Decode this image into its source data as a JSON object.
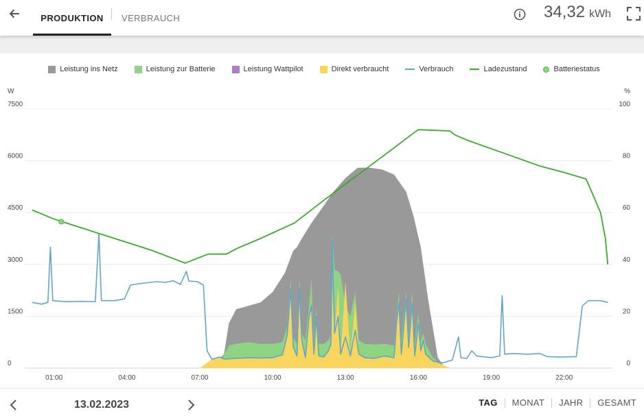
{
  "header": {
    "tabs": [
      {
        "label": "PRODUKTION",
        "active": true
      },
      {
        "label": "VERBRAUCH",
        "active": false
      }
    ],
    "total_value": "34,32",
    "total_unit": "kWh",
    "icons": [
      "arrow-left-icon",
      "info-icon",
      "fullscreen-icon"
    ]
  },
  "footer": {
    "date": "13.02.2023",
    "periods": [
      {
        "label": "TAG",
        "active": true
      },
      {
        "label": "MONAT",
        "active": false
      },
      {
        "label": "JAHR",
        "active": false
      },
      {
        "label": "GESAMT",
        "active": false
      }
    ],
    "icons": [
      "chevron-left-icon",
      "chevron-right-icon"
    ]
  },
  "colors": {
    "netz": "#999999",
    "batterie": "#8fd483",
    "wattpilot": "#b07cc6",
    "direkt": "#f9d55e",
    "verbrauch": "#5fa6c8",
    "ladezustand": "#3aaa2b",
    "batteriestatus": "#8fd483"
  },
  "chart_data": {
    "type": "area",
    "legend": [
      {
        "label": "Leistung ins Netz",
        "kind": "area",
        "color": "#999999"
      },
      {
        "label": "Leistung zur Batterie",
        "kind": "area",
        "color": "#8fd483"
      },
      {
        "label": "Leistung Wattpilot",
        "kind": "area",
        "color": "#b07cc6"
      },
      {
        "label": "Direkt verbraucht",
        "kind": "area",
        "color": "#f9d55e"
      },
      {
        "label": "Verbrauch",
        "kind": "line",
        "color": "#5fa6c8"
      },
      {
        "label": "Ladezustand",
        "kind": "line",
        "color": "#3aaa2b"
      },
      {
        "label": "Batteriestatus",
        "kind": "marker",
        "color": "#8fd483"
      }
    ],
    "legend_position": "top",
    "grid": true,
    "x_unit": "hours",
    "x_range": [
      0,
      24
    ],
    "x_ticks": [
      {
        "value": 1,
        "label": "01:00"
      },
      {
        "value": 4,
        "label": "04:00"
      },
      {
        "value": 7,
        "label": "07:00"
      },
      {
        "value": 10,
        "label": "10:00"
      },
      {
        "value": 13,
        "label": "13:00"
      },
      {
        "value": 16,
        "label": "16:00"
      },
      {
        "value": 19,
        "label": "19:00"
      },
      {
        "value": 22,
        "label": "22:00"
      }
    ],
    "y_left": {
      "unit": "W",
      "range": [
        0,
        7500
      ],
      "ticks": [
        0,
        1500,
        3000,
        4500,
        6000,
        7500
      ]
    },
    "y_right": {
      "unit": "%",
      "range": [
        0,
        100
      ],
      "ticks": [
        0,
        20,
        40,
        60,
        80,
        100
      ]
    },
    "series": [
      {
        "name": "Verbrauch",
        "kind": "line",
        "axis": "left",
        "points": [
          [
            0.1,
            1900
          ],
          [
            0.5,
            1850
          ],
          [
            0.75,
            1900
          ],
          [
            0.85,
            3500
          ],
          [
            0.95,
            1950
          ],
          [
            1.5,
            1920
          ],
          [
            2.2,
            1930
          ],
          [
            2.7,
            1920
          ],
          [
            2.85,
            3900
          ],
          [
            2.95,
            1950
          ],
          [
            3.5,
            1950
          ],
          [
            3.9,
            2000
          ],
          [
            4.15,
            2400
          ],
          [
            4.6,
            2450
          ],
          [
            5.2,
            2500
          ],
          [
            5.6,
            2480
          ],
          [
            5.9,
            2530
          ],
          [
            6.2,
            2420
          ],
          [
            6.45,
            2800
          ],
          [
            6.55,
            2520
          ],
          [
            6.9,
            2500
          ],
          [
            7.15,
            2400
          ],
          [
            7.3,
            500
          ],
          [
            7.5,
            250
          ],
          [
            7.8,
            320
          ],
          [
            8.0,
            260
          ],
          [
            8.5,
            280
          ],
          [
            9.0,
            300
          ],
          [
            9.5,
            290
          ],
          [
            10.0,
            300
          ],
          [
            10.4,
            380
          ],
          [
            10.6,
            950
          ],
          [
            10.75,
            2300
          ],
          [
            10.85,
            600
          ],
          [
            11.0,
            350
          ],
          [
            11.1,
            2300
          ],
          [
            11.2,
            800
          ],
          [
            11.35,
            300
          ],
          [
            11.5,
            1500
          ],
          [
            11.6,
            1800
          ],
          [
            11.7,
            400
          ],
          [
            11.8,
            1500
          ],
          [
            11.9,
            350
          ],
          [
            12.1,
            320
          ],
          [
            12.3,
            500
          ],
          [
            12.4,
            700
          ],
          [
            12.45,
            3700
          ],
          [
            12.55,
            1000
          ],
          [
            12.7,
            1500
          ],
          [
            12.8,
            400
          ],
          [
            13.0,
            900
          ],
          [
            13.2,
            350
          ],
          [
            13.4,
            1100
          ],
          [
            13.55,
            400
          ],
          [
            13.8,
            300
          ],
          [
            14.2,
            280
          ],
          [
            14.6,
            350
          ],
          [
            15.0,
            300
          ],
          [
            15.1,
            1300
          ],
          [
            15.2,
            1900
          ],
          [
            15.3,
            400
          ],
          [
            15.5,
            2000
          ],
          [
            15.6,
            600
          ],
          [
            15.75,
            1900
          ],
          [
            15.85,
            350
          ],
          [
            16.0,
            1300
          ],
          [
            16.1,
            500
          ],
          [
            16.2,
            800
          ],
          [
            16.3,
            400
          ],
          [
            16.6,
            200
          ],
          [
            17.0,
            150
          ],
          [
            17.4,
            230
          ],
          [
            17.65,
            900
          ],
          [
            17.75,
            300
          ],
          [
            18.0,
            280
          ],
          [
            18.2,
            500
          ],
          [
            18.4,
            350
          ],
          [
            19.0,
            300
          ],
          [
            19.35,
            350
          ],
          [
            19.45,
            2100
          ],
          [
            19.55,
            400
          ],
          [
            19.9,
            420
          ],
          [
            20.5,
            400
          ],
          [
            21.0,
            420
          ],
          [
            21.3,
            330
          ],
          [
            21.8,
            320
          ],
          [
            22.5,
            330
          ],
          [
            22.75,
            1800
          ],
          [
            23.0,
            1950
          ],
          [
            23.5,
            1950
          ],
          [
            23.8,
            1900
          ]
        ]
      },
      {
        "name": "Ladezustand",
        "kind": "line",
        "axis": "right",
        "points": [
          [
            0.1,
            61
          ],
          [
            1.0,
            57.5
          ],
          [
            2.0,
            54.5
          ],
          [
            3.5,
            50
          ],
          [
            5.0,
            45.5
          ],
          [
            6.4,
            40.5
          ],
          [
            7.35,
            44
          ],
          [
            8.1,
            44
          ],
          [
            8.5,
            46
          ],
          [
            9.5,
            50
          ],
          [
            10.9,
            56
          ],
          [
            12.0,
            64
          ],
          [
            13.0,
            71
          ],
          [
            14.0,
            78
          ],
          [
            15.0,
            85
          ],
          [
            15.7,
            90
          ],
          [
            16.0,
            92
          ],
          [
            17.3,
            91.5
          ],
          [
            17.5,
            90
          ],
          [
            18.0,
            88
          ],
          [
            19.5,
            83
          ],
          [
            21.0,
            78
          ],
          [
            22.0,
            75.5
          ],
          [
            22.9,
            73
          ],
          [
            23.0,
            71
          ],
          [
            23.5,
            60
          ],
          [
            23.7,
            50
          ],
          [
            23.8,
            40
          ]
        ]
      },
      {
        "name": "Leistung ins Netz",
        "kind": "area",
        "axis": "left",
        "points": [
          [
            7.5,
            0
          ],
          [
            7.7,
            200
          ],
          [
            8.0,
            400
          ],
          [
            8.2,
            1300
          ],
          [
            8.5,
            1700
          ],
          [
            9.0,
            1800
          ],
          [
            9.5,
            1900
          ],
          [
            10.0,
            2200
          ],
          [
            10.5,
            2750
          ],
          [
            10.85,
            3400
          ],
          [
            11.0,
            3500
          ],
          [
            11.2,
            3750
          ],
          [
            11.6,
            4200
          ],
          [
            12.0,
            4600
          ],
          [
            12.5,
            5100
          ],
          [
            13.0,
            5500
          ],
          [
            13.5,
            5800
          ],
          [
            14.0,
            5800
          ],
          [
            14.5,
            5750
          ],
          [
            15.0,
            5600
          ],
          [
            15.5,
            5100
          ],
          [
            15.8,
            4400
          ],
          [
            16.1,
            3500
          ],
          [
            16.4,
            2000
          ],
          [
            16.8,
            300
          ],
          [
            17.0,
            100
          ],
          [
            17.2,
            0
          ]
        ]
      },
      {
        "name": "Leistung zur Batterie",
        "kind": "area",
        "axis": "left",
        "points": [
          [
            7.4,
            0
          ],
          [
            7.6,
            150
          ],
          [
            7.9,
            250
          ],
          [
            8.2,
            650
          ],
          [
            8.5,
            700
          ],
          [
            9.0,
            750
          ],
          [
            9.5,
            700
          ],
          [
            10.0,
            700
          ],
          [
            10.4,
            750
          ],
          [
            10.6,
            1200
          ],
          [
            10.75,
            2600
          ],
          [
            10.85,
            900
          ],
          [
            11.0,
            700
          ],
          [
            11.1,
            2600
          ],
          [
            11.2,
            1000
          ],
          [
            11.35,
            800
          ],
          [
            11.5,
            1800
          ],
          [
            11.6,
            2600
          ],
          [
            11.7,
            800
          ],
          [
            11.8,
            1700
          ],
          [
            11.9,
            700
          ],
          [
            12.1,
            700
          ],
          [
            12.3,
            800
          ],
          [
            12.4,
            1000
          ],
          [
            12.45,
            3900
          ],
          [
            12.55,
            2850
          ],
          [
            12.7,
            2800
          ],
          [
            12.8,
            2700
          ],
          [
            13.0,
            1800
          ],
          [
            13.2,
            1500
          ],
          [
            13.4,
            2200
          ],
          [
            13.55,
            800
          ],
          [
            13.8,
            700
          ],
          [
            14.2,
            680
          ],
          [
            14.6,
            700
          ],
          [
            15.0,
            650
          ],
          [
            15.1,
            1500
          ],
          [
            15.2,
            2200
          ],
          [
            15.3,
            800
          ],
          [
            15.5,
            2200
          ],
          [
            15.6,
            900
          ],
          [
            15.75,
            2200
          ],
          [
            15.85,
            700
          ],
          [
            16.0,
            1600
          ],
          [
            16.1,
            800
          ],
          [
            16.2,
            1000
          ],
          [
            16.3,
            700
          ],
          [
            16.6,
            300
          ],
          [
            17.0,
            60
          ],
          [
            17.2,
            0
          ]
        ]
      },
      {
        "name": "Direkt verbraucht",
        "kind": "area",
        "axis": "left",
        "points": [
          [
            7.0,
            0
          ],
          [
            7.3,
            150
          ],
          [
            7.5,
            250
          ],
          [
            7.8,
            320
          ],
          [
            8.0,
            260
          ],
          [
            8.5,
            280
          ],
          [
            9.0,
            300
          ],
          [
            9.5,
            290
          ],
          [
            10.0,
            300
          ],
          [
            10.4,
            380
          ],
          [
            10.6,
            950
          ],
          [
            10.75,
            2300
          ],
          [
            10.85,
            600
          ],
          [
            11.0,
            350
          ],
          [
            11.1,
            2300
          ],
          [
            11.2,
            800
          ],
          [
            11.35,
            300
          ],
          [
            11.5,
            1500
          ],
          [
            11.6,
            1800
          ],
          [
            11.7,
            400
          ],
          [
            11.8,
            1500
          ],
          [
            11.9,
            350
          ],
          [
            12.1,
            320
          ],
          [
            12.3,
            500
          ],
          [
            12.4,
            700
          ],
          [
            12.45,
            2400
          ],
          [
            12.55,
            1000
          ],
          [
            12.7,
            2400
          ],
          [
            12.8,
            400
          ],
          [
            13.0,
            2500
          ],
          [
            13.2,
            350
          ],
          [
            13.4,
            1900
          ],
          [
            13.55,
            400
          ],
          [
            13.8,
            300
          ],
          [
            14.2,
            280
          ],
          [
            14.6,
            350
          ],
          [
            15.0,
            300
          ],
          [
            15.1,
            1300
          ],
          [
            15.2,
            1900
          ],
          [
            15.3,
            400
          ],
          [
            15.5,
            2000
          ],
          [
            15.6,
            600
          ],
          [
            15.75,
            1900
          ],
          [
            15.85,
            350
          ],
          [
            16.0,
            1300
          ],
          [
            16.1,
            500
          ],
          [
            16.2,
            800
          ],
          [
            16.3,
            400
          ],
          [
            16.6,
            200
          ],
          [
            17.0,
            100
          ],
          [
            17.3,
            0
          ]
        ]
      },
      {
        "name": "Batteriestatus",
        "kind": "marker",
        "axis": "right",
        "points": [
          [
            1.3,
            56.5
          ]
        ]
      }
    ]
  }
}
